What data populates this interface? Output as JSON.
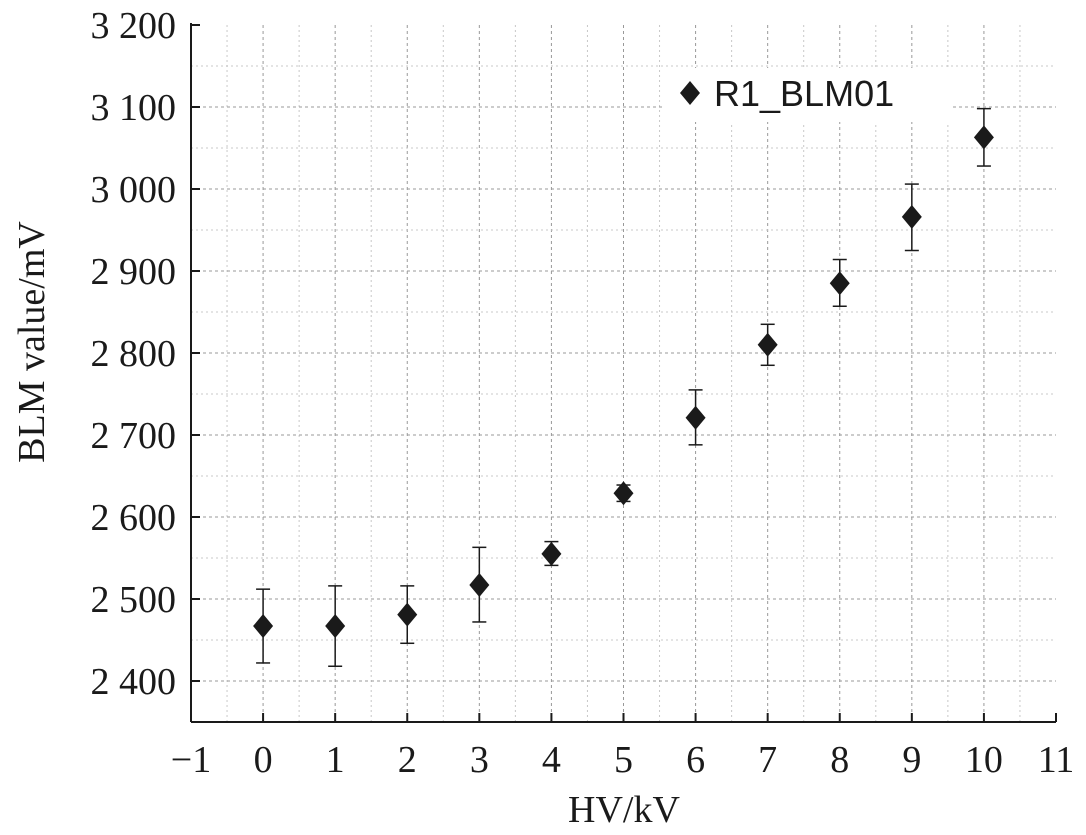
{
  "chart_data": {
    "type": "scatter",
    "xlabel": "HV/kV",
    "ylabel": "BLM value/mV",
    "xlim": [
      -1,
      11
    ],
    "ylim": [
      2340,
      3200
    ],
    "x_ticks": [
      -1,
      0,
      1,
      2,
      3,
      4,
      5,
      6,
      7,
      8,
      9,
      10,
      11
    ],
    "x_tick_labels": [
      "−1",
      "0",
      "1",
      "2",
      "3",
      "4",
      "5",
      "6",
      "7",
      "8",
      "9",
      "10",
      "11"
    ],
    "y_ticks": [
      2400,
      2500,
      2600,
      2700,
      2800,
      2900,
      3000,
      3100,
      3200
    ],
    "y_tick_labels": [
      "2 400",
      "2 500",
      "2 600",
      "2 700",
      "2 800",
      "2 900",
      "3 000",
      "3 100",
      "3 200"
    ],
    "grid": true,
    "legend_position": "top-right",
    "series": [
      {
        "name": "R1_BLM01",
        "marker": "diamond",
        "color": "#1a1a1a",
        "x": [
          0,
          1,
          2,
          3,
          4,
          5,
          6,
          7,
          8,
          9,
          10
        ],
        "y": [
          2467,
          2467,
          2481,
          2517,
          2555,
          2629,
          2721,
          2810,
          2885,
          2966,
          3063
        ],
        "err_low": [
          2422,
          2418,
          2446,
          2472,
          2541,
          2619,
          2688,
          2785,
          2857,
          2925,
          3028
        ],
        "err_high": [
          2512,
          2516,
          2516,
          2563,
          2570,
          2639,
          2755,
          2835,
          2914,
          3006,
          3098
        ]
      }
    ]
  }
}
